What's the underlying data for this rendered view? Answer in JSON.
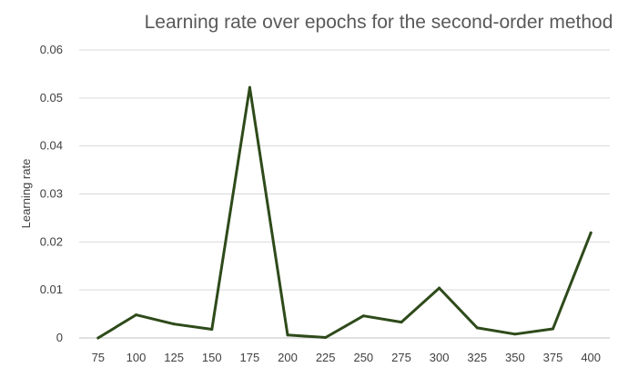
{
  "chart_data": {
    "type": "line",
    "title": "Learning rate over epochs for the second-order method",
    "xlabel": "",
    "ylabel": "Learning rate",
    "categories": [
      "75",
      "100",
      "125",
      "150",
      "175",
      "200",
      "225",
      "250",
      "275",
      "300",
      "325",
      "350",
      "375",
      "400"
    ],
    "series": [
      {
        "values": [
          0.0,
          0.0048,
          0.0029,
          0.0018,
          0.0522,
          0.0006,
          0.0001,
          0.0046,
          0.0033,
          0.0104,
          0.0021,
          0.0008,
          0.0019,
          0.0219
        ],
        "color": "#2e4a1a"
      }
    ],
    "ylim": [
      0,
      0.06
    ],
    "yticks": [
      "0",
      "0.01",
      "0.02",
      "0.03",
      "0.04",
      "0.05",
      "0.06"
    ],
    "grid": true,
    "legend": "none"
  }
}
